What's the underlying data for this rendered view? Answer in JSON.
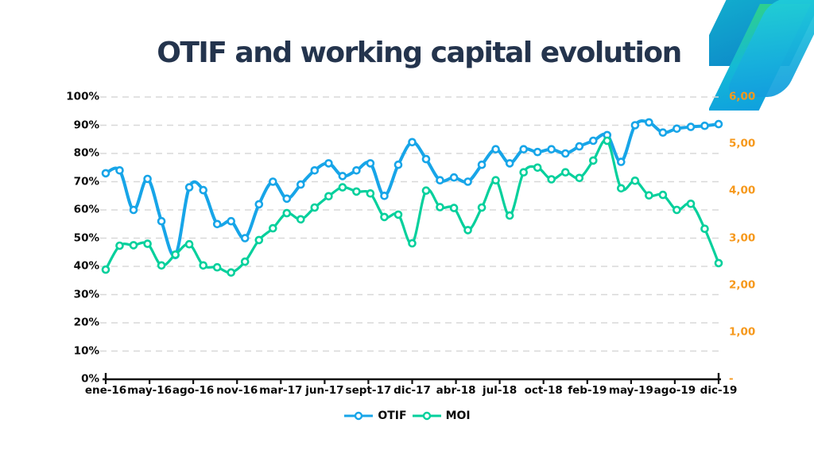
{
  "slide": {
    "title": "OTIF and working capital evolution"
  },
  "legend": {
    "items": [
      {
        "label": "OTIF"
      },
      {
        "label": "MOI"
      }
    ]
  },
  "colors": {
    "otif": "#17A5E8",
    "moi": "#05D09C",
    "right_axis_text": "#F6991D",
    "axis_text": "#0B0B0B",
    "title_text": "#24344D",
    "gridline": "#D8D8D8",
    "axis_line": "#111111"
  },
  "chart_data": {
    "type": "line",
    "title": "OTIF and working capital evolution",
    "smoothed": true,
    "grid": "horizontal-dashed",
    "legend_position": "bottom",
    "x_tick_labels": [
      "ene-16",
      "may-16",
      "ago-16",
      "nov-16",
      "mar-17",
      "jun-17",
      "sept-17",
      "dic-17",
      "abr-18",
      "jul-18",
      "oct-18",
      "feb-19",
      "may-19",
      "ago-19",
      "dic-19"
    ],
    "left_axis": {
      "ticks": [
        "0%",
        "10%",
        "20%",
        "30%",
        "40%",
        "50%",
        "60%",
        "70%",
        "80%",
        "90%",
        "100%"
      ],
      "min": 0,
      "max": 100
    },
    "right_axis": {
      "ticks": [
        "-",
        "1,00",
        "2,00",
        "3,00",
        "4,00",
        "5,00",
        "6,00"
      ],
      "min": 0,
      "max": 6
    },
    "series": [
      {
        "name": "OTIF",
        "axis": "left",
        "marker": "circle",
        "values": [
          73,
          74,
          60,
          71,
          56,
          44,
          68,
          67,
          55,
          56,
          50,
          62,
          70,
          64,
          69,
          74,
          76.5,
          72,
          74,
          76.5,
          65,
          76,
          84,
          78,
          70.5,
          71.5,
          70,
          76,
          81.5,
          76.5,
          81.5,
          80.5,
          81.5,
          80,
          82.5,
          84.5,
          86.5,
          77,
          90,
          91,
          87.4,
          88.8,
          89.4,
          89.8,
          90.4
        ]
      },
      {
        "name": "MOI",
        "axis": "right",
        "marker": "circle",
        "values": [
          2.33,
          2.84,
          2.85,
          2.88,
          2.42,
          2.65,
          2.87,
          2.42,
          2.38,
          2.27,
          2.5,
          2.96,
          3.21,
          3.53,
          3.4,
          3.65,
          3.89,
          4.08,
          3.99,
          3.95,
          3.45,
          3.5,
          2.89,
          4.01,
          3.66,
          3.64,
          3.17,
          3.65,
          4.23,
          3.48,
          4.4,
          4.5,
          4.25,
          4.4,
          4.28,
          4.65,
          5.07,
          4.06,
          4.22,
          3.91,
          3.92,
          3.6,
          3.73,
          3.2,
          2.47
        ]
      }
    ]
  }
}
